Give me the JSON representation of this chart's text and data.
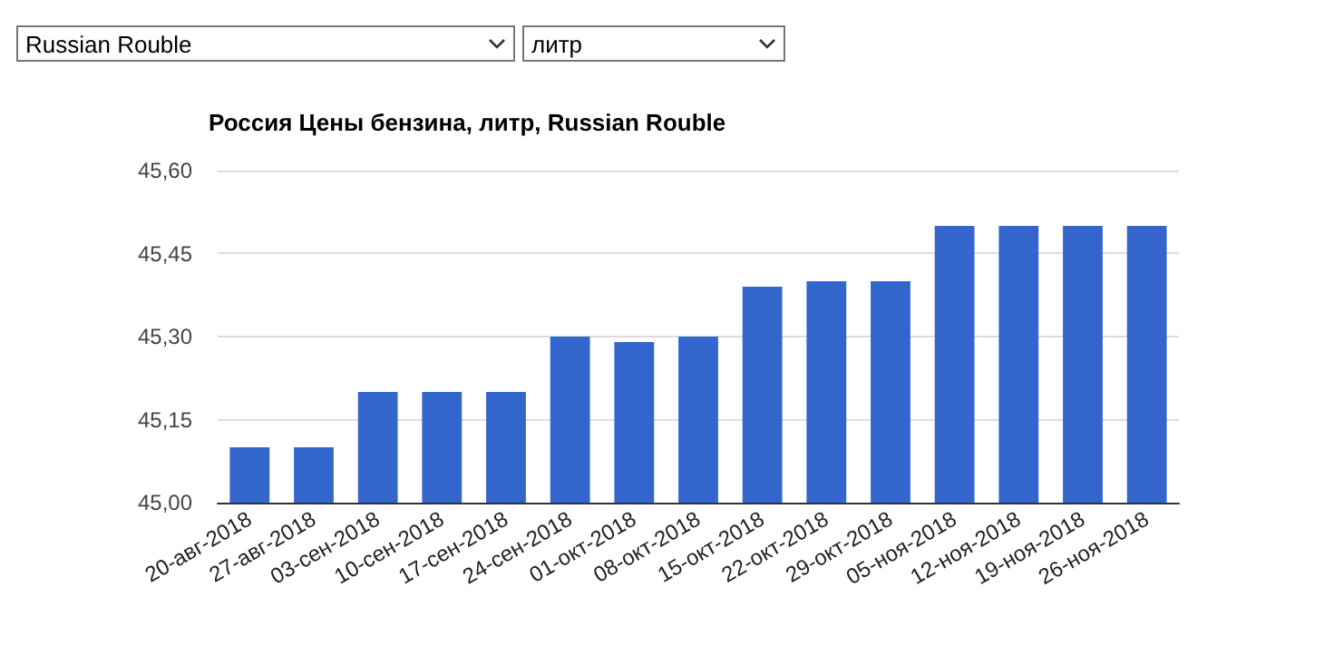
{
  "chart_data": {
    "type": "bar",
    "title": "Россия Цены бензина, литр, Russian Rouble",
    "annotations": [
      "Russian Rouble",
      "литр"
    ],
    "categories": [
      "20-авг-2018",
      "27-авг-2018",
      "03-сен-2018",
      "10-сен-2018",
      "17-сен-2018",
      "24-сен-2018",
      "01-окт-2018",
      "08-окт-2018",
      "15-окт-2018",
      "22-окт-2018",
      "29-окт-2018",
      "05-ноя-2018",
      "12-ноя-2018",
      "19-ноя-2018",
      "26-ноя-2018"
    ],
    "values": [
      45.1,
      45.1,
      45.2,
      45.2,
      45.2,
      45.3,
      45.29,
      45.3,
      45.39,
      45.4,
      45.4,
      45.5,
      45.5,
      45.5,
      45.5
    ],
    "color": "#3366cc",
    "ylim": [
      45.0,
      45.6
    ],
    "yticks": [
      {
        "value": 45.0,
        "label": "45,00"
      },
      {
        "value": 45.15,
        "label": "45,15"
      },
      {
        "value": 45.3,
        "label": "45,30"
      },
      {
        "value": 45.45,
        "label": "45,45"
      },
      {
        "value": 45.6,
        "label": "45,60"
      }
    ],
    "grid": "y"
  }
}
